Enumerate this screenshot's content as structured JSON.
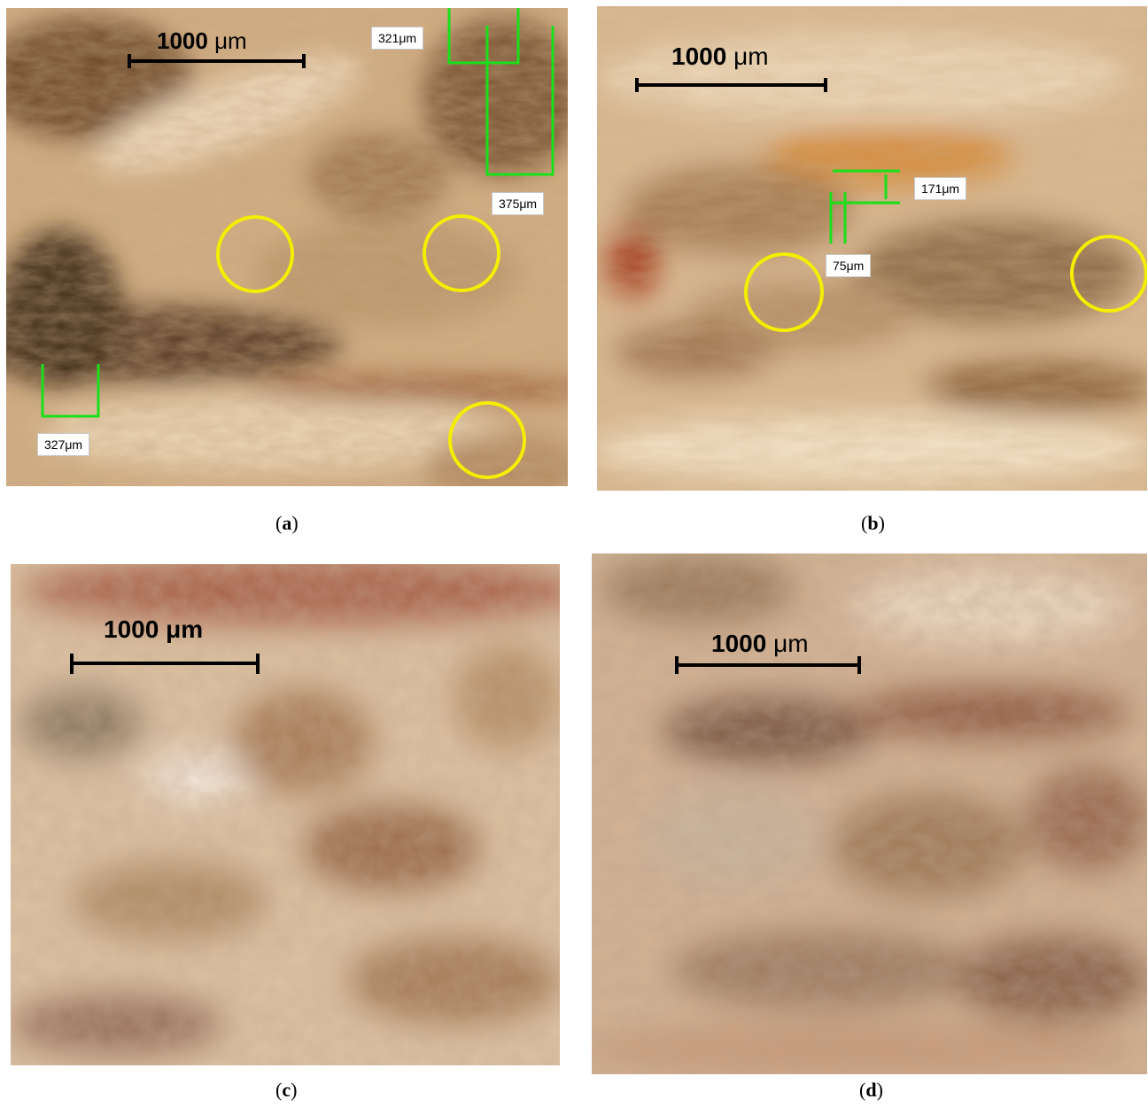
{
  "figure": {
    "panels": [
      {
        "id": "a",
        "scale_bar_value": "1000",
        "scale_bar_unit": "μm",
        "measurements": [
          "321μm",
          "375μm",
          "327μm"
        ],
        "caption_letter": "a",
        "highlight_circles": 3,
        "colors": {
          "base": "#c9a27a",
          "marker": "#19e019",
          "circle": "#f5ee00"
        }
      },
      {
        "id": "b",
        "scale_bar_value": "1000",
        "scale_bar_unit": "μm",
        "measurements": [
          "171μm",
          "75μm"
        ],
        "caption_letter": "b",
        "highlight_circles": 2,
        "colors": {
          "base": "#d7b48e",
          "marker": "#19e019",
          "circle": "#f5ee00"
        }
      },
      {
        "id": "c",
        "scale_bar_value": "1000",
        "scale_bar_unit": "μm",
        "caption_letter": "c",
        "colors": {
          "base": "#dcc0a0"
        }
      },
      {
        "id": "d",
        "scale_bar_value": "1000",
        "scale_bar_unit": "μm",
        "caption_letter": "d",
        "colors": {
          "base": "#d2b08f"
        }
      }
    ]
  }
}
